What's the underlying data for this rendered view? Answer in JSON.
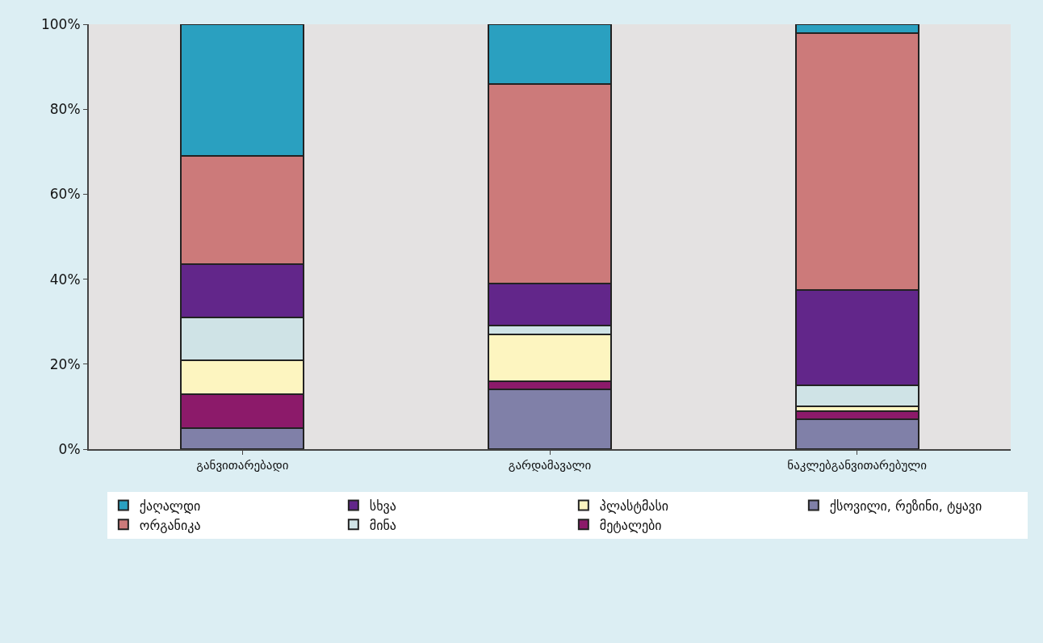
{
  "chart_data": {
    "type": "bar",
    "stacked": true,
    "categories": [
      "განვითარებადი",
      "გარდამავალი",
      "ნაკლებგანვითარებული"
    ],
    "series": [
      {
        "name": "ქსოვილი, რეზინი, ტყავი",
        "color": "#8080a8",
        "values": [
          5,
          14,
          7
        ]
      },
      {
        "name": "მეტალები",
        "color": "#8c1a6a",
        "values": [
          8,
          2,
          2
        ]
      },
      {
        "name": "პლასტმასი",
        "color": "#fdf5c0",
        "values": [
          8,
          11,
          1
        ]
      },
      {
        "name": "მინა",
        "color": "#cfe3e6",
        "values": [
          10,
          2,
          5
        ]
      },
      {
        "name": "სხვა",
        "color": "#62268a",
        "values": [
          12.5,
          10,
          22.5
        ]
      },
      {
        "name": "ორგანიკა",
        "color": "#cc7a7a",
        "values": [
          25.5,
          47,
          60.5
        ]
      },
      {
        "name": "ქაღალდი",
        "color": "#2aa0c0",
        "values": [
          31,
          14,
          2
        ]
      }
    ],
    "ylim": [
      0,
      100
    ],
    "yticks": [
      {
        "value": 0,
        "label": "0%"
      },
      {
        "value": 20,
        "label": "20%"
      },
      {
        "value": 40,
        "label": "40%"
      },
      {
        "value": 60,
        "label": "60%"
      },
      {
        "value": 80,
        "label": "80%"
      },
      {
        "value": 100,
        "label": "100%"
      }
    ],
    "grid": false,
    "legend": "bottom"
  }
}
